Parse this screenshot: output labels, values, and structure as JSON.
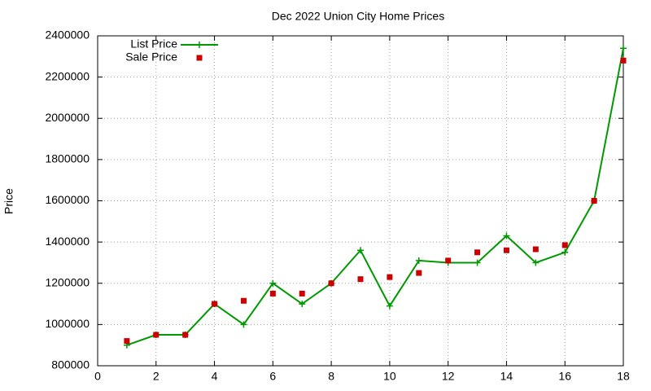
{
  "chart_data": {
    "type": "line",
    "title": "Dec 2022 Union City Home Prices",
    "y_label": "Price",
    "x": [
      1,
      2,
      3,
      4,
      5,
      6,
      7,
      8,
      9,
      10,
      11,
      12,
      13,
      14,
      15,
      16,
      17,
      18
    ],
    "series": [
      {
        "name": "List Price",
        "color": "#009900",
        "line": true,
        "marker": "plus",
        "values": [
          900000,
          950000,
          950000,
          1100000,
          1000000,
          1200000,
          1100000,
          1200000,
          1360000,
          1090000,
          1310000,
          1300000,
          1300000,
          1430000,
          1300000,
          1350000,
          1600000,
          2340000
        ]
      },
      {
        "name": "Sale Price",
        "color": "#cc0000",
        "line": false,
        "marker": "square",
        "values": [
          920000,
          950000,
          950000,
          1100000,
          1115000,
          1150000,
          1150000,
          1200000,
          1220000,
          1230000,
          1250000,
          1310000,
          1350000,
          1360000,
          1365000,
          1385000,
          1600000,
          2280000
        ]
      }
    ],
    "xlim": [
      0,
      18
    ],
    "xticks": [
      0,
      2,
      4,
      6,
      8,
      10,
      12,
      14,
      16,
      18
    ],
    "ylim": [
      800000,
      2400000
    ],
    "yticks": [
      800000,
      1000000,
      1200000,
      1400000,
      1600000,
      1800000,
      2000000,
      2200000,
      2400000
    ],
    "grid": true,
    "legend": "top-left"
  }
}
